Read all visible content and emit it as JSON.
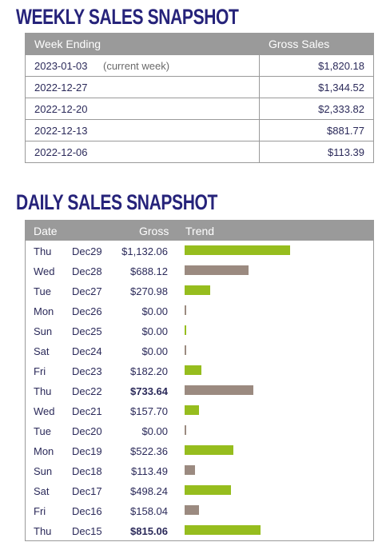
{
  "weekly": {
    "title": "WEEKLY SALES SNAPSHOT",
    "headers": {
      "week": "Week Ending",
      "gross": "Gross Sales"
    },
    "rows": [
      {
        "week": "2023-01-03",
        "note": "(current week)",
        "gross": "$1,820.18"
      },
      {
        "week": "2022-12-27",
        "note": "",
        "gross": "$1,344.52"
      },
      {
        "week": "2022-12-20",
        "note": "",
        "gross": "$2,333.82"
      },
      {
        "week": "2022-12-13",
        "note": "",
        "gross": "$881.77"
      },
      {
        "week": "2022-12-06",
        "note": "",
        "gross": "$113.39"
      }
    ]
  },
  "daily": {
    "title": "DAILY SALES SNAPSHOT",
    "headers": {
      "date": "Date",
      "gross": "Gross",
      "trend": "Trend"
    },
    "trend_max": 1132.06,
    "colors": {
      "up": "#96bd1e",
      "down": "#9b8a80"
    },
    "rows": [
      {
        "day": "Thu",
        "date": "Dec29",
        "gross": "$1,132.06",
        "value": 1132.06,
        "trend": "up",
        "bold": false
      },
      {
        "day": "Wed",
        "date": "Dec28",
        "gross": "$688.12",
        "value": 688.12,
        "trend": "down",
        "bold": false
      },
      {
        "day": "Tue",
        "date": "Dec27",
        "gross": "$270.98",
        "value": 270.98,
        "trend": "up",
        "bold": false
      },
      {
        "day": "Mon",
        "date": "Dec26",
        "gross": "$0.00",
        "value": 0,
        "trend": "down",
        "bold": false
      },
      {
        "day": "Sun",
        "date": "Dec25",
        "gross": "$0.00",
        "value": 0,
        "trend": "up",
        "bold": false
      },
      {
        "day": "Sat",
        "date": "Dec24",
        "gross": "$0.00",
        "value": 0,
        "trend": "down",
        "bold": false
      },
      {
        "day": "Fri",
        "date": "Dec23",
        "gross": "$182.20",
        "value": 182.2,
        "trend": "up",
        "bold": false
      },
      {
        "day": "Thu",
        "date": "Dec22",
        "gross": "$733.64",
        "value": 733.64,
        "trend": "down",
        "bold": true
      },
      {
        "day": "Wed",
        "date": "Dec21",
        "gross": "$157.70",
        "value": 157.7,
        "trend": "up",
        "bold": false
      },
      {
        "day": "Tue",
        "date": "Dec20",
        "gross": "$0.00",
        "value": 0,
        "trend": "down",
        "bold": false
      },
      {
        "day": "Mon",
        "date": "Dec19",
        "gross": "$522.36",
        "value": 522.36,
        "trend": "up",
        "bold": false
      },
      {
        "day": "Sun",
        "date": "Dec18",
        "gross": "$113.49",
        "value": 113.49,
        "trend": "down",
        "bold": false
      },
      {
        "day": "Sat",
        "date": "Dec17",
        "gross": "$498.24",
        "value": 498.24,
        "trend": "up",
        "bold": false
      },
      {
        "day": "Fri",
        "date": "Dec16",
        "gross": "$158.04",
        "value": 158.04,
        "trend": "down",
        "bold": false
      },
      {
        "day": "Thu",
        "date": "Dec15",
        "gross": "$815.06",
        "value": 815.06,
        "trend": "up",
        "bold": true
      }
    ]
  }
}
